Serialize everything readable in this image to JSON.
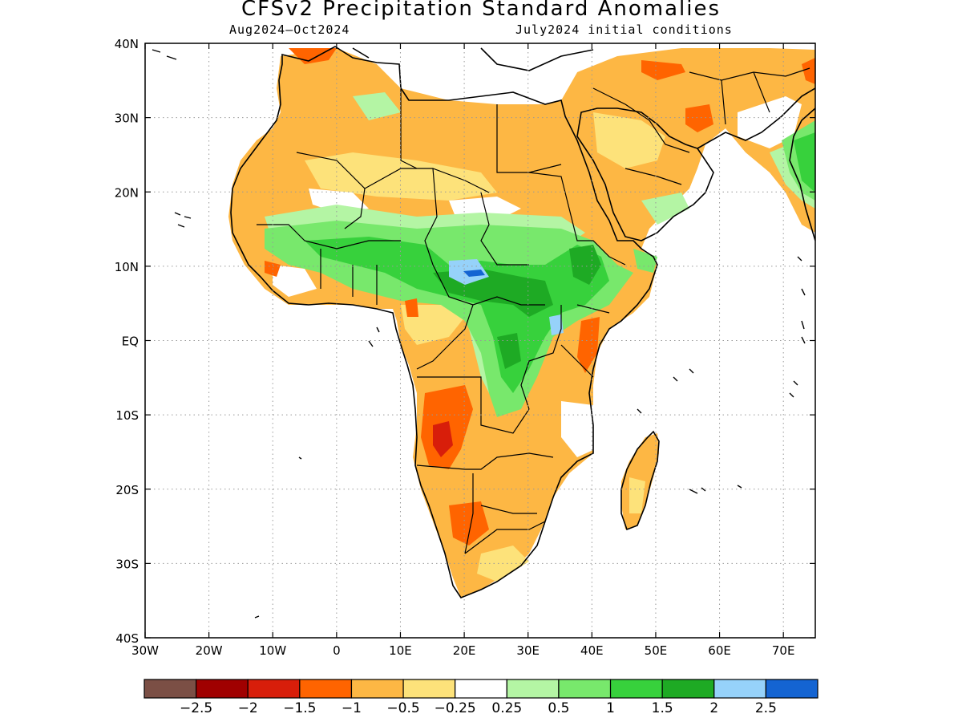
{
  "title": "CFSv2 Precipitation Standard Anomalies",
  "subtitle_left": "Aug2024–Oct2024",
  "subtitle_right": "July2024 initial conditions",
  "map": {
    "lon_range": [
      -30,
      75
    ],
    "lat_range": [
      -40,
      40
    ],
    "x_ticks": [
      {
        "value": -30,
        "label": "30W"
      },
      {
        "value": -20,
        "label": "20W"
      },
      {
        "value": -10,
        "label": "10W"
      },
      {
        "value": 0,
        "label": "0"
      },
      {
        "value": 10,
        "label": "10E"
      },
      {
        "value": 20,
        "label": "20E"
      },
      {
        "value": 30,
        "label": "30E"
      },
      {
        "value": 40,
        "label": "40E"
      },
      {
        "value": 50,
        "label": "50E"
      },
      {
        "value": 60,
        "label": "60E"
      },
      {
        "value": 70,
        "label": "70E"
      }
    ],
    "y_ticks": [
      {
        "value": 40,
        "label": "40N"
      },
      {
        "value": 30,
        "label": "30N"
      },
      {
        "value": 20,
        "label": "20N"
      },
      {
        "value": 10,
        "label": "10N"
      },
      {
        "value": 0,
        "label": "EQ"
      },
      {
        "value": -10,
        "label": "10S"
      },
      {
        "value": -20,
        "label": "20S"
      },
      {
        "value": -30,
        "label": "30S"
      },
      {
        "value": -40,
        "label": "40S"
      }
    ],
    "grid": "dotted"
  },
  "colorbar": {
    "colors": [
      "#7b4f45",
      "#a00000",
      "#d81e0a",
      "#ff6400",
      "#fdb744",
      "#fde27a",
      "#ffffff",
      "#b4f5a4",
      "#78e86c",
      "#37d13c",
      "#1eaa24",
      "#96d2fa",
      "#1464d2"
    ],
    "labels": [
      "−2.5",
      "−2",
      "−1.5",
      "−1",
      "−0.5",
      "−0.25",
      "0.25",
      "0.5",
      "1",
      "1.5",
      "2",
      "2.5"
    ]
  }
}
